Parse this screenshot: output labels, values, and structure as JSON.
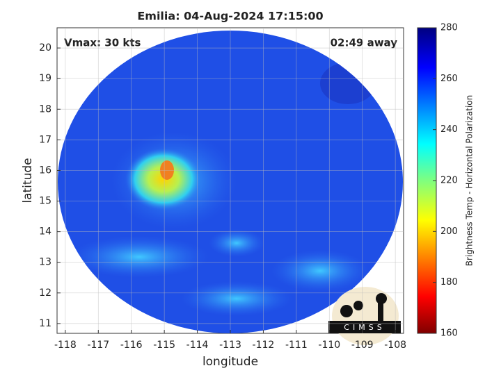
{
  "map": {
    "title": "Emilia: 04-Aug-2024 17:15:00",
    "annotations": [
      "Vmax: 30 kts",
      "02:49 away"
    ],
    "xlabel": "longitude",
    "ylabel": "latitude",
    "xlim": [
      -118.25,
      -107.75
    ],
    "ylim": [
      10.68,
      20.66
    ],
    "xticks": [
      -118,
      -117,
      -116,
      -115,
      -114,
      -113,
      -112,
      -111,
      -110,
      -109,
      -108
    ],
    "yticks": [
      11,
      12,
      13,
      14,
      15,
      16,
      17,
      18,
      19,
      20
    ],
    "grid": true,
    "colorbar": {
      "label": "Brightness Temp - Horizontal Polarization",
      "lim": [
        160,
        280
      ],
      "ticks": [
        160,
        180,
        200,
        220,
        240,
        260,
        280
      ]
    },
    "logo": "CIMSS"
  }
}
